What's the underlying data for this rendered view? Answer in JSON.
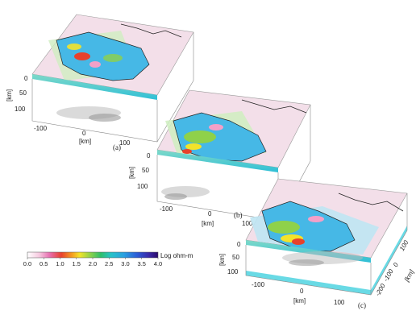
{
  "figure": {
    "panels": [
      {
        "id": "a",
        "label": "(a)",
        "depth_labels": [
          "0",
          "50",
          "100"
        ],
        "depth_unit": "[km]",
        "x_ticks": [
          "-100",
          "0",
          "100"
        ],
        "x_unit": "[km]"
      },
      {
        "id": "b",
        "label": "(b)",
        "depth_labels": [
          "0",
          "50",
          "100"
        ],
        "depth_unit": "[km]",
        "x_ticks": [
          "-100",
          "0",
          "100"
        ],
        "x_unit": "[km]"
      },
      {
        "id": "c",
        "label": "(c)",
        "depth_labels": [
          "0",
          "50",
          "100"
        ],
        "depth_unit": "[km]",
        "x_ticks": [
          "-100",
          "0",
          "100"
        ],
        "x_unit": "[km]",
        "y_ticks": [
          "-200",
          "-100",
          "0",
          "100"
        ],
        "y_unit": "[km]"
      }
    ],
    "colorbar": {
      "ticks": [
        "0.0",
        "0.5",
        "1.0",
        "1.5",
        "2.0",
        "2.5",
        "3.0",
        "3.5",
        "4.0"
      ],
      "unit": "Log ohm-m",
      "colors": [
        "#ffffff",
        "#f6b8d8",
        "#e76fb0",
        "#e8412c",
        "#f59b21",
        "#f3e32a",
        "#8fd14a",
        "#2fbe6a",
        "#27c2c8",
        "#2a9fe0",
        "#2c5cd6",
        "#3a2aa8",
        "#2a0a6a"
      ]
    },
    "palette": {
      "land_blue": "#3bb3e6",
      "land_cyan": "#5fd0e8",
      "anomaly_red": "#e8412c",
      "anomaly_pink": "#f3a0c8",
      "anomaly_yellow": "#f3e32a",
      "anomaly_green": "#8fd14a",
      "background_pink": "#f8dbe8",
      "background_green": "#cfeec0",
      "slab_edge": "#3dc7d8"
    }
  }
}
